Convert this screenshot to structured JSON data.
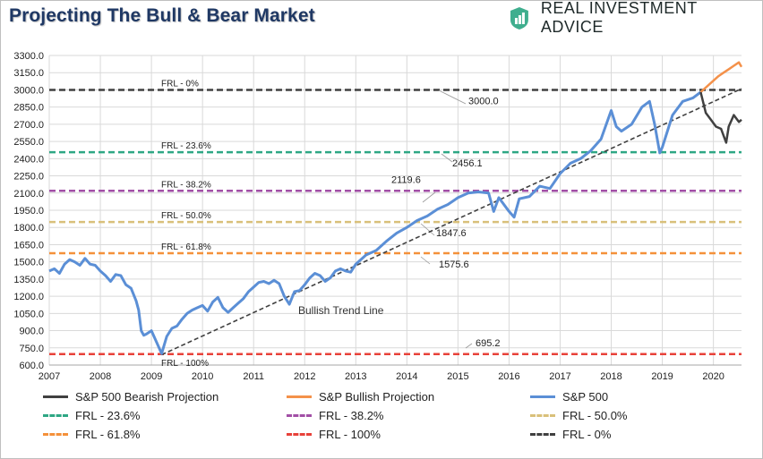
{
  "header": {
    "title": "Projecting The Bull & Bear Market",
    "brand": "REAL INVESTMENT ADVICE"
  },
  "colors": {
    "sp500": "#5b8fd6",
    "bull": "#f4914a",
    "bear": "#404040",
    "frl_236": "#2ea784",
    "frl_382": "#a24fa6",
    "frl_500": "#d9c07a",
    "frl_618": "#f4913a",
    "frl_100": "#e8423a",
    "frl_0": "#404040",
    "trend": "#404040"
  },
  "chart_data": {
    "type": "line",
    "title": "Projecting The Bull & Bear Market",
    "xlabel": "",
    "ylabel": "",
    "xlim": [
      2007,
      2020.55
    ],
    "ylim": [
      600,
      3300
    ],
    "x_ticks": [
      "2007",
      "2008",
      "2009",
      "2010",
      "2011",
      "2012",
      "2013",
      "2014",
      "2015",
      "2016",
      "2017",
      "2018",
      "2019",
      "2020"
    ],
    "y_ticks": [
      "600.0",
      "750.0",
      "900.0",
      "1050.0",
      "1200.0",
      "1350.0",
      "1500.0",
      "1650.0",
      "1800.0",
      "1950.0",
      "2100.0",
      "2250.0",
      "2400.0",
      "2550.0",
      "2700.0",
      "2850.0",
      "3000.0",
      "3150.0",
      "3300.0"
    ],
    "grid": true,
    "legend_position": "bottom",
    "fib_levels": [
      {
        "name": "FRL - 0%",
        "value": 3000.0,
        "value_label": "3000.0"
      },
      {
        "name": "FRL - 23.6%",
        "value": 2456.1,
        "value_label": "2456.1"
      },
      {
        "name": "FRL - 38.2%",
        "value": 2119.6,
        "value_label": "2119.6"
      },
      {
        "name": "FRL - 50.0%",
        "value": 1847.6,
        "value_label": "1847.6"
      },
      {
        "name": "FRL - 61.8%",
        "value": 1575.6,
        "value_label": "1575.6"
      },
      {
        "name": "FRL - 100%",
        "value": 695.2,
        "value_label": "695.2"
      }
    ],
    "trend_line": {
      "label": "Bullish Trend Line",
      "x": [
        2009.2,
        2020.55
      ],
      "y": [
        690,
        3010
      ]
    },
    "series": [
      {
        "name": "S&P 500",
        "x": [
          2007.0,
          2007.1,
          2007.2,
          2007.3,
          2007.4,
          2007.5,
          2007.6,
          2007.7,
          2007.8,
          2007.9,
          2008.0,
          2008.1,
          2008.2,
          2008.3,
          2008.4,
          2008.5,
          2008.6,
          2008.7,
          2008.75,
          2008.8,
          2008.85,
          2008.9,
          2009.0,
          2009.1,
          2009.2,
          2009.3,
          2009.4,
          2009.5,
          2009.6,
          2009.7,
          2009.8,
          2009.9,
          2010.0,
          2010.1,
          2010.2,
          2010.3,
          2010.4,
          2010.5,
          2010.6,
          2010.7,
          2010.8,
          2010.9,
          2011.0,
          2011.1,
          2011.2,
          2011.3,
          2011.4,
          2011.5,
          2011.6,
          2011.7,
          2011.8,
          2011.9,
          2012.0,
          2012.1,
          2012.2,
          2012.3,
          2012.4,
          2012.5,
          2012.6,
          2012.7,
          2012.8,
          2012.9,
          2013.0,
          2013.2,
          2013.4,
          2013.6,
          2013.8,
          2014.0,
          2014.2,
          2014.4,
          2014.6,
          2014.8,
          2015.0,
          2015.2,
          2015.4,
          2015.6,
          2015.7,
          2015.8,
          2016.0,
          2016.1,
          2016.2,
          2016.4,
          2016.6,
          2016.8,
          2017.0,
          2017.2,
          2017.4,
          2017.6,
          2017.8,
          2018.0,
          2018.1,
          2018.2,
          2018.4,
          2018.6,
          2018.75,
          2018.85,
          2018.95,
          2019.0,
          2019.2,
          2019.4,
          2019.6,
          2019.75
        ],
        "y": [
          1420,
          1440,
          1400,
          1480,
          1520,
          1500,
          1470,
          1530,
          1480,
          1470,
          1420,
          1380,
          1330,
          1390,
          1380,
          1300,
          1270,
          1160,
          1080,
          900,
          860,
          870,
          900,
          800,
          700,
          850,
          920,
          940,
          1000,
          1050,
          1080,
          1100,
          1120,
          1070,
          1150,
          1190,
          1100,
          1060,
          1100,
          1140,
          1180,
          1240,
          1280,
          1320,
          1330,
          1310,
          1340,
          1310,
          1200,
          1130,
          1240,
          1250,
          1300,
          1360,
          1400,
          1380,
          1330,
          1360,
          1420,
          1440,
          1420,
          1410,
          1480,
          1560,
          1600,
          1680,
          1750,
          1800,
          1860,
          1900,
          1960,
          2000,
          2060,
          2100,
          2110,
          2100,
          1940,
          2060,
          1940,
          1890,
          2050,
          2070,
          2160,
          2140,
          2270,
          2360,
          2400,
          2470,
          2570,
          2820,
          2680,
          2640,
          2700,
          2850,
          2900,
          2700,
          2450,
          2500,
          2780,
          2900,
          2930,
          2980
        ]
      },
      {
        "name": "S&P Bullish Projection",
        "x": [
          2019.75,
          2019.9,
          2020.0,
          2020.1,
          2020.2,
          2020.3,
          2020.4,
          2020.5,
          2020.55
        ],
        "y": [
          2980,
          3040,
          3080,
          3120,
          3150,
          3180,
          3210,
          3240,
          3200
        ]
      },
      {
        "name": "S&P 500 Bearish Projection",
        "x": [
          2019.75,
          2019.85,
          2019.95,
          2020.05,
          2020.15,
          2020.2,
          2020.25,
          2020.3,
          2020.4,
          2020.5,
          2020.55
        ],
        "y": [
          2980,
          2800,
          2740,
          2680,
          2660,
          2600,
          2540,
          2680,
          2780,
          2720,
          2740
        ]
      }
    ]
  },
  "legend": [
    {
      "label": "S&P 500 Bearish Projection",
      "color_key": "bear",
      "dash": false
    },
    {
      "label": "S&P Bullish Projection",
      "color_key": "bull",
      "dash": false
    },
    {
      "label": "S&P 500",
      "color_key": "sp500",
      "dash": false
    },
    {
      "label": "FRL - 23.6%",
      "color_key": "frl_236",
      "dash": true
    },
    {
      "label": "FRL - 38.2%",
      "color_key": "frl_382",
      "dash": true
    },
    {
      "label": "FRL - 50.0%",
      "color_key": "frl_500",
      "dash": true
    },
    {
      "label": "FRL - 61.8%",
      "color_key": "frl_618",
      "dash": true
    },
    {
      "label": "FRL - 100%",
      "color_key": "frl_100",
      "dash": true
    },
    {
      "label": "FRL - 0%",
      "color_key": "frl_0",
      "dash": true
    }
  ]
}
